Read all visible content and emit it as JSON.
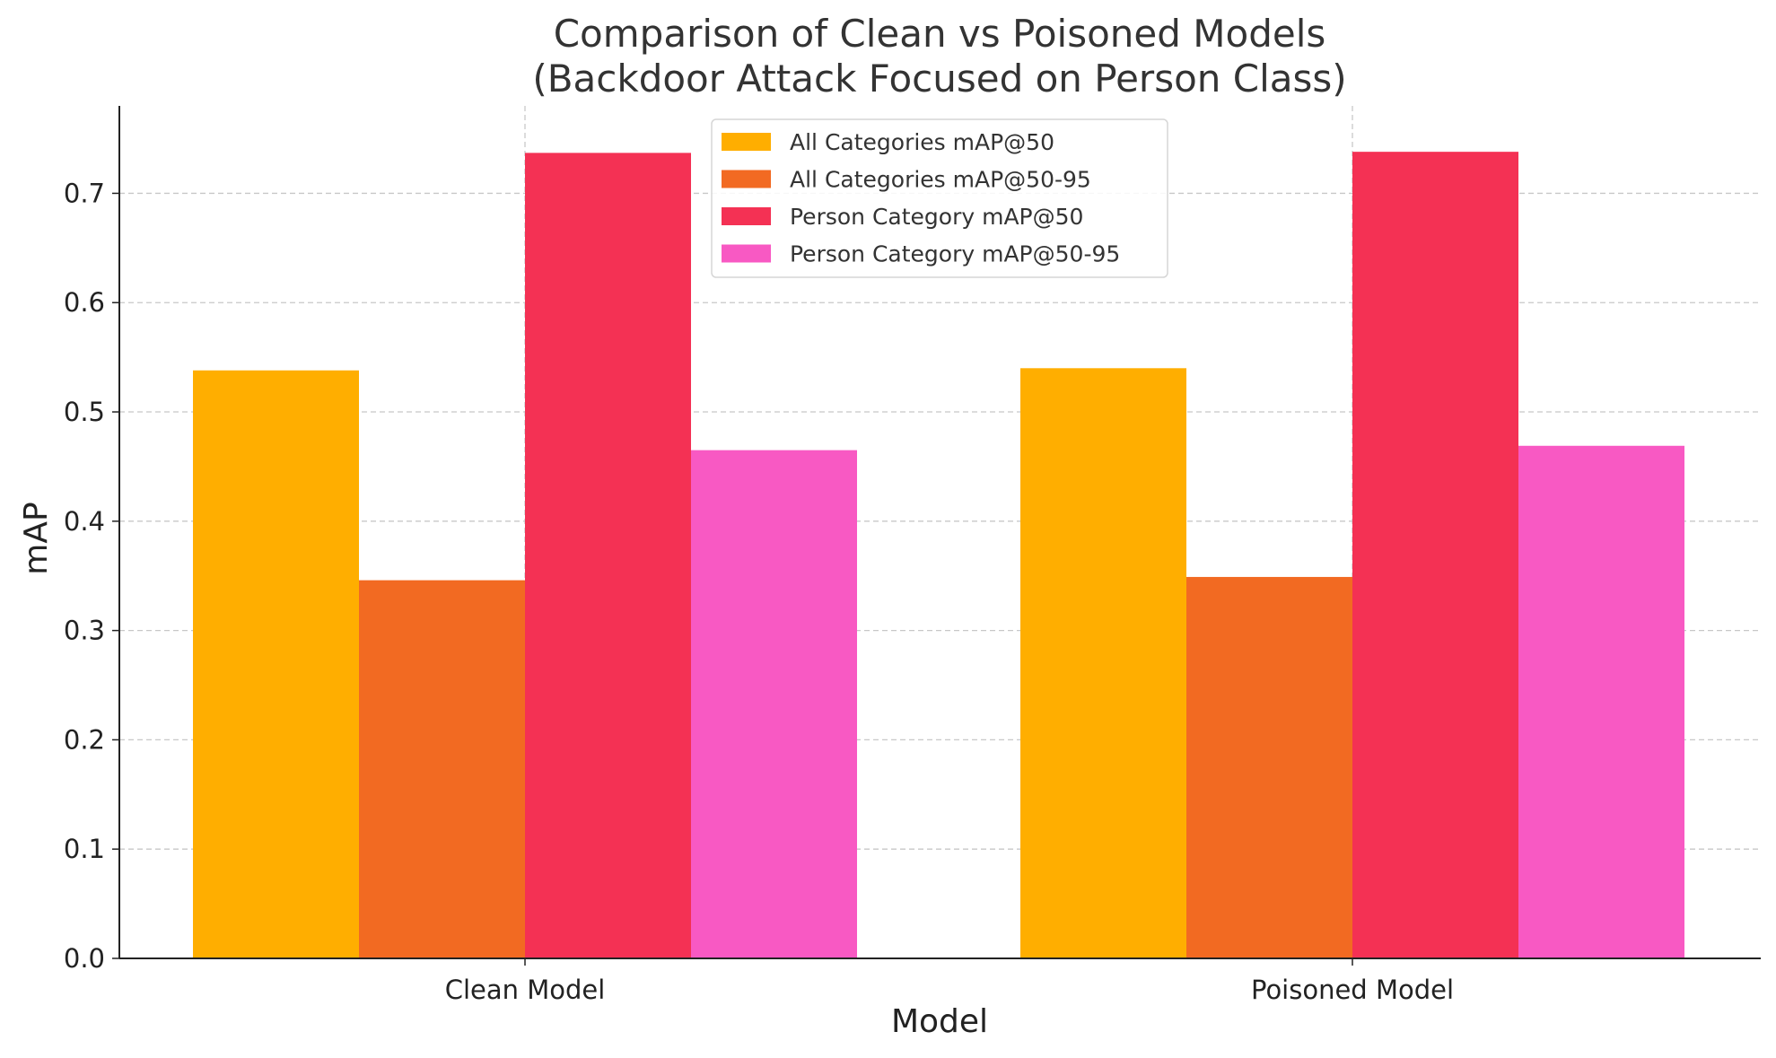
{
  "chart_data": {
    "type": "bar",
    "title_line1": "Comparison of Clean vs Poisoned Models",
    "title_line2": "(Backdoor Attack Focused on Person Class)",
    "xlabel": "Model",
    "ylabel": "mAP",
    "categories": [
      "Clean Model",
      "Poisoned Model"
    ],
    "ylim": [
      0,
      0.78
    ],
    "yticks": [
      "0.0",
      "0.1",
      "0.2",
      "0.3",
      "0.4",
      "0.5",
      "0.6",
      "0.7"
    ],
    "grid": true,
    "legend_position": "top-center",
    "series": [
      {
        "name": "All Categories mAP@50",
        "color": "#FFAE00",
        "values": [
          0.538,
          0.54
        ]
      },
      {
        "name": "All Categories mAP@50-95",
        "color": "#F26A22",
        "values": [
          0.346,
          0.349
        ]
      },
      {
        "name": "Person Category mAP@50",
        "color": "#F43154",
        "values": [
          0.737,
          0.738
        ]
      },
      {
        "name": "Person Category mAP@50-95",
        "color": "#F859C3",
        "values": [
          0.465,
          0.469
        ]
      }
    ]
  }
}
